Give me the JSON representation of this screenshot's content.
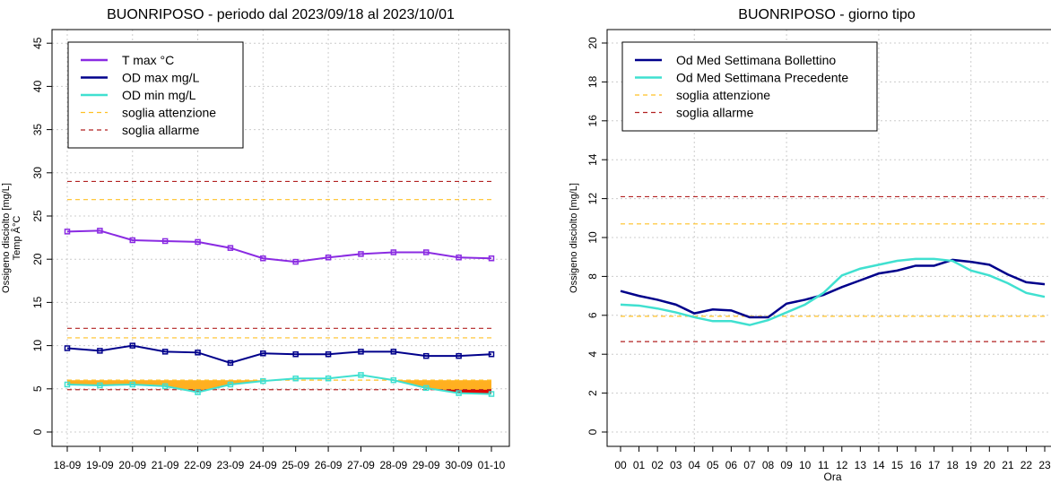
{
  "chart_data": [
    {
      "type": "line",
      "title": "BUONRIPOSO - periodo dal 2023/09/18 al 2023/10/01",
      "ylabel": [
        "Ossigeno disciolto [mg/L]",
        "Temp Â°C"
      ],
      "xlabel": "",
      "ylim": [
        -2,
        47
      ],
      "yticks": [
        0,
        5,
        10,
        15,
        20,
        25,
        30,
        35,
        40,
        45
      ],
      "grid": true,
      "legend_position": "top-left",
      "categories": [
        "18-09",
        "19-09",
        "20-09",
        "21-09",
        "22-09",
        "23-09",
        "24-09",
        "25-09",
        "26-09",
        "27-09",
        "28-09",
        "29-09",
        "30-09",
        "01-10"
      ],
      "series": [
        {
          "name": "T max °C",
          "color": "#8a2be2",
          "values": [
            23.2,
            23.3,
            22.2,
            22.1,
            22.0,
            21.3,
            20.1,
            19.7,
            20.2,
            20.6,
            20.8,
            20.8,
            20.2,
            20.1
          ]
        },
        {
          "name": "OD max mg/L",
          "color": "#00008b",
          "values": [
            9.7,
            9.4,
            10.0,
            9.3,
            9.2,
            8.0,
            9.1,
            9.0,
            9.0,
            9.3,
            9.3,
            8.8,
            8.8,
            9.0
          ]
        },
        {
          "name": "OD min mg/L",
          "color": "#40e0d0",
          "values": [
            5.5,
            5.4,
            5.5,
            5.3,
            4.6,
            5.5,
            5.9,
            6.2,
            6.2,
            6.6,
            6.0,
            5.1,
            4.5,
            4.4
          ]
        }
      ],
      "thresholds": [
        {
          "name": "soglia attenzione",
          "color": "#ffc125",
          "values": [
            26.9,
            10.9,
            6.0
          ]
        },
        {
          "name": "soglia allarme",
          "color": "#b22222",
          "values": [
            29.0,
            12.0,
            4.9
          ]
        }
      ],
      "fill": {
        "attention_level": 6.0,
        "alarm_level": 4.9,
        "attention_color": "#ffb020",
        "alarm_color": "#e00000"
      }
    },
    {
      "type": "line",
      "title": "BUONRIPOSO - giorno tipo",
      "ylabel": [
        "Ossigeno disciolto [mg/L]"
      ],
      "xlabel": "Ora",
      "ylim": [
        -0.7,
        20.7
      ],
      "yticks": [
        0,
        2,
        4,
        6,
        8,
        10,
        12,
        14,
        16,
        18,
        20
      ],
      "grid": true,
      "legend_position": "top-left",
      "categories": [
        "00",
        "01",
        "02",
        "03",
        "04",
        "05",
        "06",
        "07",
        "08",
        "09",
        "10",
        "11",
        "12",
        "13",
        "14",
        "15",
        "16",
        "17",
        "18",
        "19",
        "20",
        "21",
        "22",
        "23"
      ],
      "series": [
        {
          "name": "Od Med Settimana Bollettino",
          "color": "#00008b",
          "values": [
            7.25,
            7.0,
            6.8,
            6.55,
            6.1,
            6.3,
            6.25,
            5.9,
            5.9,
            6.6,
            6.8,
            7.05,
            7.45,
            7.8,
            8.15,
            8.3,
            8.55,
            8.55,
            8.85,
            8.75,
            8.6,
            8.1,
            7.7,
            7.6
          ]
        },
        {
          "name": "Od Med Settimana Precedente",
          "color": "#40e0d0",
          "values": [
            6.55,
            6.5,
            6.35,
            6.15,
            5.9,
            5.7,
            5.7,
            5.5,
            5.75,
            6.15,
            6.55,
            7.15,
            8.05,
            8.4,
            8.6,
            8.8,
            8.9,
            8.9,
            8.8,
            8.3,
            8.05,
            7.65,
            7.15,
            6.95
          ]
        }
      ],
      "thresholds": [
        {
          "name": "soglia attenzione",
          "color": "#ffc125",
          "values": [
            10.7,
            5.95
          ]
        },
        {
          "name": "soglia allarme",
          "color": "#b22222",
          "values": [
            12.1,
            4.65
          ]
        }
      ]
    }
  ]
}
